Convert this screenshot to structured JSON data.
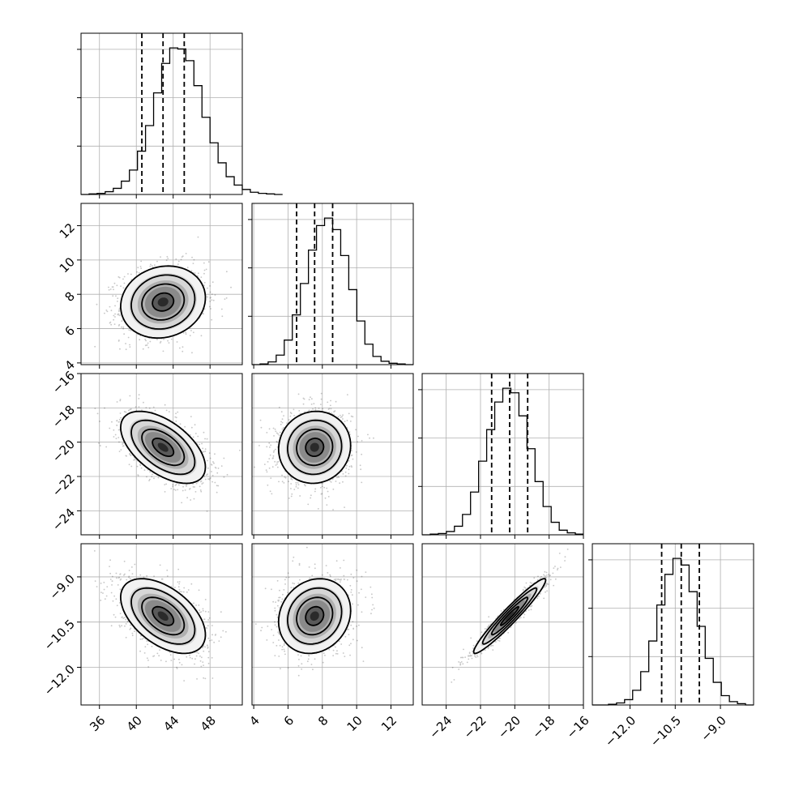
{
  "chart_data": {
    "type": "corner",
    "grid": true,
    "quantiles_shown": [
      "16%",
      "50%",
      "84%"
    ],
    "parameters": [
      {
        "index": 0,
        "range": [
          34,
          51.5
        ],
        "ticks": [
          36,
          40,
          44,
          48
        ],
        "tick_labels": [
          "36",
          "40",
          "44",
          "48"
        ],
        "quantiles": [
          40.6,
          42.9,
          45.2
        ],
        "histogram": {
          "edges_start": 34,
          "bin_width": 0.875,
          "counts": [
            0,
            1,
            2,
            5,
            11,
            24,
            44,
            78,
            124,
            183,
            236,
            264,
            262,
            241,
            196,
            139,
            93,
            57,
            32,
            17,
            9,
            4,
            2,
            1,
            0
          ]
        }
      },
      {
        "index": 1,
        "range": [
          3.9,
          13.3
        ],
        "ticks": [
          4,
          6,
          8,
          10,
          12
        ],
        "tick_labels": [
          "4",
          "6",
          "8",
          "10",
          "12"
        ],
        "quantiles": [
          6.5,
          7.55,
          8.6
        ],
        "histogram": {
          "edges_start": 3.9,
          "bin_width": 0.47,
          "counts": [
            0,
            1,
            4,
            14,
            36,
            73,
            119,
            168,
            204,
            215,
            198,
            160,
            110,
            64,
            30,
            12,
            5,
            2,
            1,
            0
          ]
        }
      },
      {
        "index": 2,
        "range": [
          -25.4,
          -16.0
        ],
        "ticks": [
          -24,
          -22,
          -20,
          -18,
          -16
        ],
        "tick_labels": [
          "−24",
          "−22",
          "−20",
          "−18",
          "−16"
        ],
        "quantiles": [
          -21.35,
          -20.3,
          -19.25
        ],
        "histogram": {
          "edges_start": -25.4,
          "bin_width": 0.47,
          "counts": [
            0,
            1,
            2,
            5,
            13,
            31,
            65,
            112,
            160,
            202,
            223,
            216,
            181,
            131,
            81,
            43,
            19,
            7,
            3,
            1
          ]
        }
      },
      {
        "index": 3,
        "range": [
          -13.25,
          -7.9
        ],
        "ticks": [
          -12.0,
          -10.5,
          -9.0
        ],
        "tick_labels": [
          "−12.0",
          "−10.5",
          "−9.0"
        ],
        "quantiles": [
          -10.95,
          -10.3,
          -9.7
        ],
        "histogram": {
          "edges_start": -13.25,
          "bin_width": 0.2675,
          "counts": [
            0,
            0,
            1,
            3,
            8,
            22,
            50,
            96,
            150,
            196,
            220,
            210,
            170,
            118,
            70,
            34,
            14,
            5,
            2,
            0
          ]
        }
      }
    ],
    "pair_panels": [
      {
        "row": 1,
        "col": 0,
        "mean": [
          42.9,
          7.55
        ],
        "sd": [
          2.3,
          1.05
        ],
        "corr": 0.12
      },
      {
        "row": 2,
        "col": 0,
        "mean": [
          42.9,
          -20.3
        ],
        "sd": [
          2.3,
          1.05
        ],
        "corr": -0.55
      },
      {
        "row": 2,
        "col": 1,
        "mean": [
          7.55,
          -20.3
        ],
        "sd": [
          1.05,
          1.05
        ],
        "corr": 0.05
      },
      {
        "row": 3,
        "col": 0,
        "mean": [
          42.9,
          -10.3
        ],
        "sd": [
          2.3,
          0.62
        ],
        "corr": -0.5
      },
      {
        "row": 3,
        "col": 1,
        "mean": [
          7.55,
          -10.3
        ],
        "sd": [
          1.05,
          0.62
        ],
        "corr": 0.15
      },
      {
        "row": 3,
        "col": 2,
        "mean": [
          -20.3,
          -10.3
        ],
        "sd": [
          1.05,
          0.62
        ],
        "corr": 0.96
      }
    ],
    "contour_levels_sigma": [
      0.5,
      1.0,
      1.5,
      2.0
    ],
    "colors": {
      "line": "#000000",
      "grid": "#b0b0b0",
      "points": "#000000"
    }
  }
}
